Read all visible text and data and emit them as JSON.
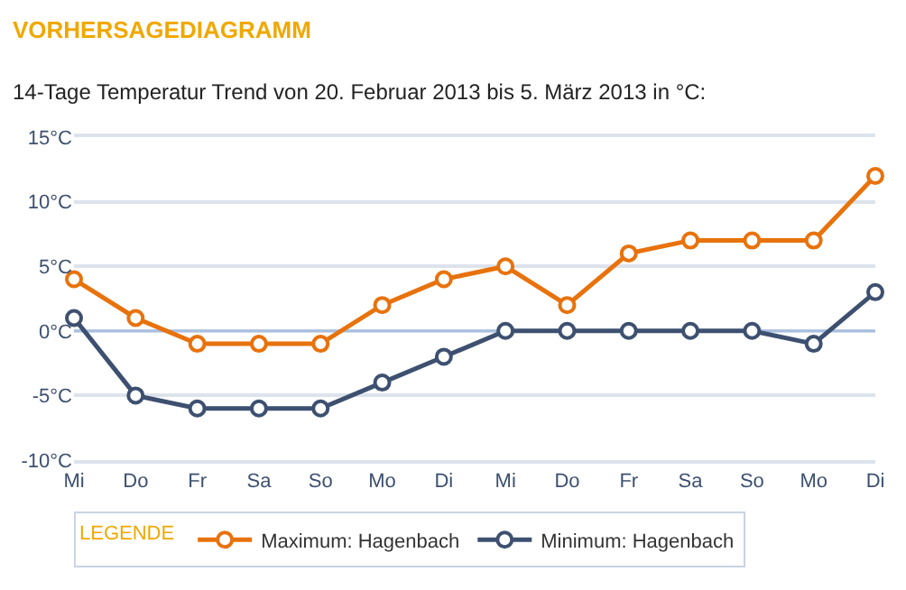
{
  "chart_data": {
    "type": "line",
    "title": "VORHERSAGEDIAGRAMM",
    "subtitle": "14-Tage Temperatur Trend von 20. Februar 2013 bis 5. März 2013 in °C:",
    "categories": [
      "Mi",
      "Do",
      "Fr",
      "Sa",
      "So",
      "Mo",
      "Di",
      "Mi",
      "Do",
      "Fr",
      "Sa",
      "So",
      "Mo",
      "Di"
    ],
    "series": [
      {
        "name": "Maximum: Hagenbach",
        "color": "#e8720c",
        "values": [
          4,
          1,
          -1,
          -1,
          -1,
          2,
          4,
          5,
          2,
          6,
          7,
          7,
          7,
          12
        ]
      },
      {
        "name": "Minimum: Hagenbach",
        "color": "#3d5070",
        "values": [
          1,
          -5,
          -6,
          -6,
          -6,
          -4,
          -2,
          0,
          0,
          0,
          0,
          0,
          -1,
          3
        ]
      }
    ],
    "ylim": [
      -10,
      15
    ],
    "yticks": [
      {
        "value": -10,
        "label": "-10°C"
      },
      {
        "value": -5,
        "label": "-5°C"
      },
      {
        "value": 0,
        "label": "0°C"
      },
      {
        "value": 5,
        "label": "5°C"
      },
      {
        "value": 10,
        "label": "10°C"
      },
      {
        "value": 15,
        "label": "15°C"
      }
    ],
    "ref_lines": [
      {
        "axis": "y",
        "value": 0,
        "color": "#a9bfe0"
      }
    ],
    "grid": "y",
    "legend": "bottom",
    "legend_title": "LEGENDE",
    "marker": "circle",
    "line_style": "solid"
  }
}
